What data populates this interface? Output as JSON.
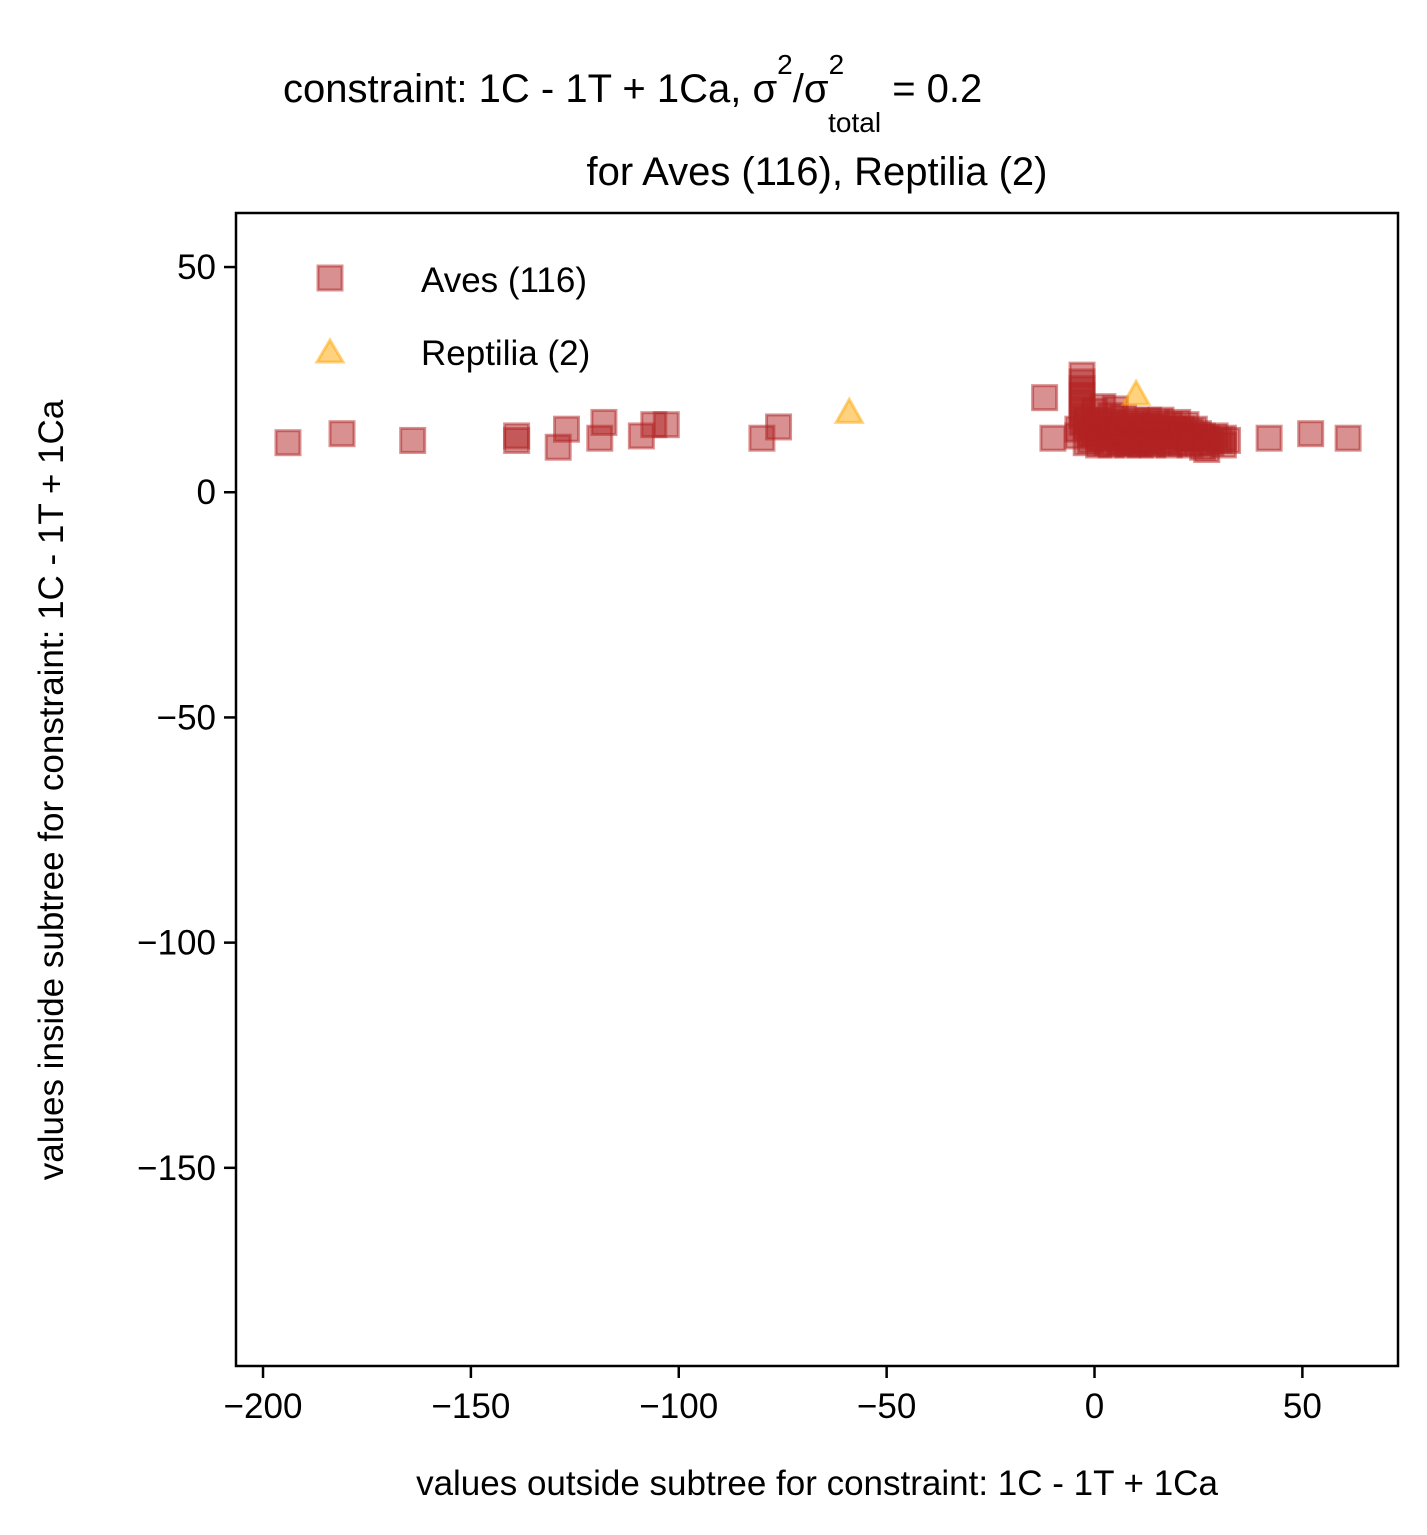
{
  "chart_data": {
    "type": "scatter",
    "title": {
      "line1_main": "constraint: 1C - 1T + 1Ca, σ",
      "sup1": "2",
      "slash": "/σ",
      "sup2": "2",
      "sub": "total",
      "line1_tail": " =  0.2",
      "line2": "for Aves (116), Reptilia (2)"
    },
    "xlabel": "values outside subtree for constraint: 1C - 1T + 1Ca",
    "ylabel": "values inside subtree for constraint: 1C - 1T + 1Ca",
    "xlim": [
      -206.5,
      73
    ],
    "ylim": [
      -194,
      62
    ],
    "xticks": [
      -200,
      -150,
      -100,
      -50,
      0,
      50
    ],
    "xtick_labels": [
      "−200",
      "−150",
      "−100",
      "−50",
      "0",
      "50"
    ],
    "yticks": [
      50,
      0,
      -50,
      -100,
      -150
    ],
    "ytick_labels": [
      "50",
      "0",
      "−50",
      "−100",
      "−150"
    ],
    "grid": false,
    "legend_position": "top-left",
    "series": [
      {
        "name": "Aves (116)",
        "marker": "square",
        "color": "#b22222",
        "points": [
          [
            -194,
            11
          ],
          [
            -181,
            13
          ],
          [
            -164,
            11.5
          ],
          [
            -139,
            12.5
          ],
          [
            -139,
            11.5
          ],
          [
            -129,
            10
          ],
          [
            -127,
            14
          ],
          [
            -119,
            12
          ],
          [
            -118,
            15.5
          ],
          [
            -109,
            12.5
          ],
          [
            -106,
            15
          ],
          [
            -103,
            15
          ],
          [
            -80,
            12
          ],
          [
            -76,
            14.5
          ],
          [
            -12,
            21
          ],
          [
            -10,
            12
          ],
          [
            -3,
            26
          ],
          [
            -3,
            24.5
          ],
          [
            -3,
            23
          ],
          [
            -3,
            21.5
          ],
          [
            -3,
            20
          ],
          [
            -3,
            18.5
          ],
          [
            -3,
            17
          ],
          [
            -3,
            15.5
          ],
          [
            -4,
            14
          ],
          [
            -4,
            12.5
          ],
          [
            -2,
            11
          ],
          [
            -1,
            13
          ],
          [
            0,
            15
          ],
          [
            1,
            12
          ],
          [
            1,
            16
          ],
          [
            2,
            14
          ],
          [
            3,
            11
          ],
          [
            3,
            13.5
          ],
          [
            4,
            10.5
          ],
          [
            4,
            17
          ],
          [
            5,
            18.5
          ],
          [
            5,
            12.5
          ],
          [
            6,
            15
          ],
          [
            6,
            11
          ],
          [
            7,
            13
          ],
          [
            7,
            16.5
          ],
          [
            8,
            14
          ],
          [
            8,
            12
          ],
          [
            9,
            15.5
          ],
          [
            9,
            11
          ],
          [
            10,
            13
          ],
          [
            10,
            16
          ],
          [
            11,
            14.5
          ],
          [
            11,
            12
          ],
          [
            12,
            15
          ],
          [
            12,
            11.5
          ],
          [
            13,
            13.5
          ],
          [
            13,
            16
          ],
          [
            14,
            12
          ],
          [
            14,
            14.5
          ],
          [
            15,
            15.5
          ],
          [
            15,
            11
          ],
          [
            16,
            13
          ],
          [
            16,
            16
          ],
          [
            17,
            14
          ],
          [
            17,
            11.5
          ],
          [
            18,
            10.5
          ],
          [
            18,
            15
          ],
          [
            19,
            12.5
          ],
          [
            19,
            14
          ],
          [
            20,
            13
          ],
          [
            20,
            15.5
          ],
          [
            21,
            11
          ],
          [
            21,
            14
          ],
          [
            22,
            12
          ],
          [
            22,
            15
          ],
          [
            23,
            13.5
          ],
          [
            23,
            10.5
          ],
          [
            24,
            14
          ],
          [
            24,
            12
          ],
          [
            25,
            13
          ],
          [
            25,
            11
          ],
          [
            26,
            12.5
          ],
          [
            26,
            10
          ],
          [
            27,
            9.5
          ],
          [
            27,
            12
          ],
          [
            28,
            11
          ],
          [
            29,
            12.5
          ],
          [
            30,
            11.5
          ],
          [
            31,
            12
          ],
          [
            31,
            10.5
          ],
          [
            32,
            11.5
          ],
          [
            -2,
            16
          ],
          [
            0,
            18
          ],
          [
            2,
            19
          ],
          [
            1,
            10.5
          ],
          [
            3,
            15.5
          ],
          [
            5,
            14
          ],
          [
            7,
            11.5
          ],
          [
            9,
            13.5
          ],
          [
            11,
            10.5
          ],
          [
            13,
            11
          ],
          [
            15,
            13.5
          ],
          [
            17,
            12.5
          ],
          [
            19,
            11
          ],
          [
            21,
            12.5
          ],
          [
            23,
            12
          ],
          [
            0,
            13
          ],
          [
            -1,
            11.5
          ],
          [
            2,
            12
          ],
          [
            4,
            13
          ],
          [
            6,
            13.5
          ],
          [
            8,
            10.5
          ],
          [
            10,
            11
          ],
          [
            12,
            13
          ],
          [
            14,
            10.5
          ],
          [
            -2,
            14.5
          ],
          [
            42,
            12
          ],
          [
            52,
            13
          ],
          [
            61,
            12
          ]
        ]
      },
      {
        "name": "Reptilia (2)",
        "marker": "triangle",
        "color": "#ffa500",
        "points": [
          [
            -59,
            17.5
          ],
          [
            10,
            21.5
          ]
        ]
      }
    ]
  }
}
